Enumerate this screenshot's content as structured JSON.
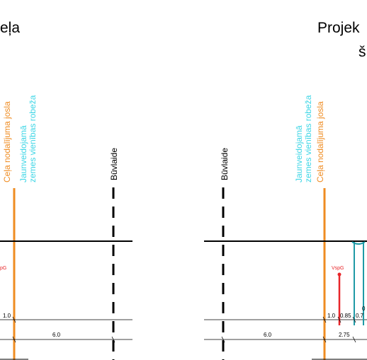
{
  "left_panel": {
    "title_fragment": "eļa",
    "labels": {
      "road_strip": "Ceļa nodalījuma josla",
      "new_boundary_line1": "Jaunveidojamā",
      "new_boundary_line2": "zemes vienības robeža",
      "building_line": "Būvlaide",
      "vspg": "pG"
    },
    "dims": {
      "d1": "1.0",
      "d2": "6.0"
    }
  },
  "right_panel": {
    "title_fragment": "Projek",
    "title_fragment2": "š",
    "labels": {
      "new_boundary_line1": "Jaunveidojamā",
      "new_boundary_line2": "zemes vienības robeža",
      "road_strip": "Ceļa nodalījuma josla",
      "building_line": "Būvlaide",
      "vspg": "VspG"
    },
    "dims": {
      "d1": "1.0",
      "d2": "0.85",
      "d3": "0.7",
      "d4": "0",
      "d5": "6.0",
      "d6": "2.75"
    }
  },
  "colors": {
    "orange": "#ef8c22",
    "cyan": "#3fd6e6",
    "red": "#e8262a",
    "teal": "#1f9aa6",
    "black": "#000000"
  }
}
